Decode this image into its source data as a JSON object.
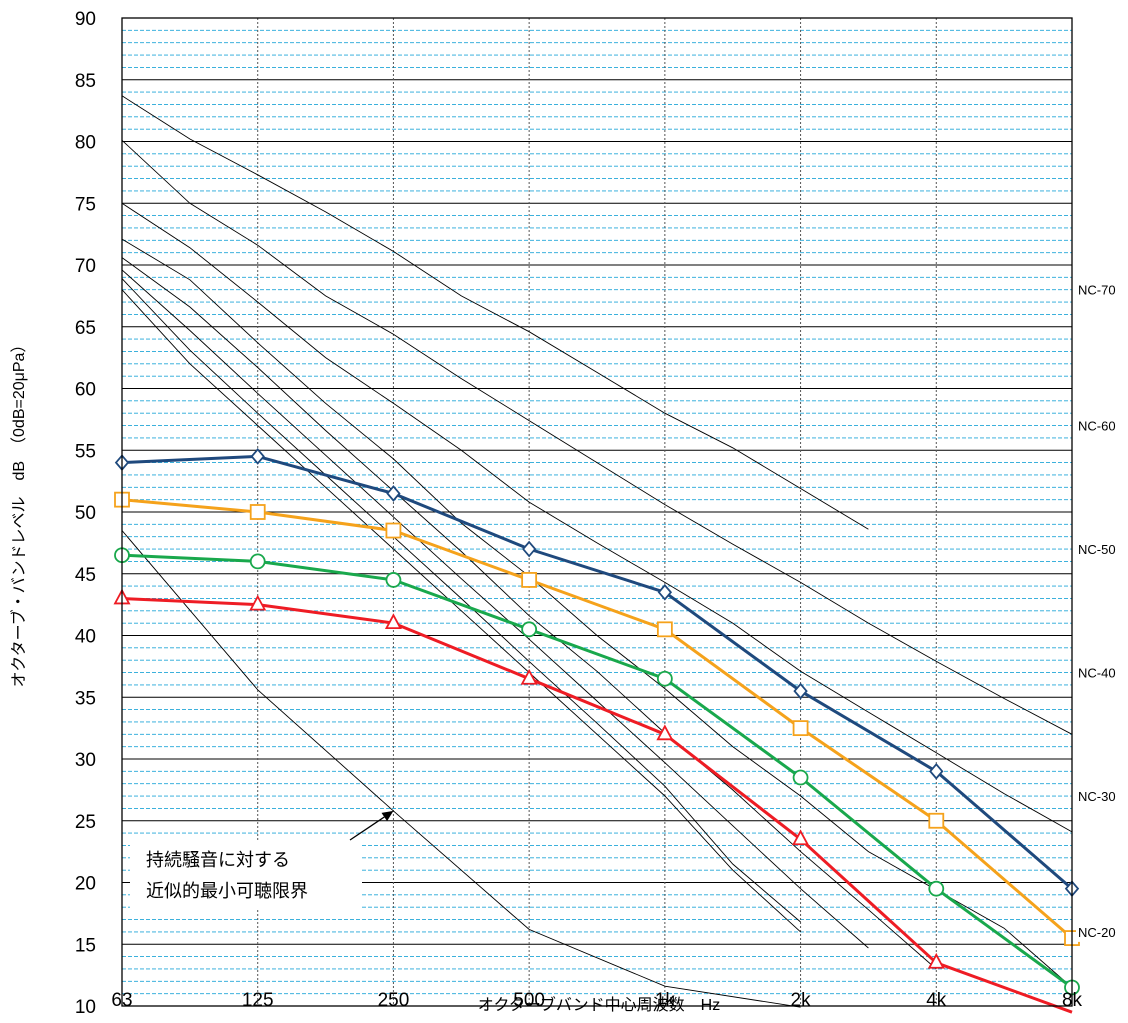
{
  "chart_data": {
    "type": "line",
    "xlabel": "オクターブバンド中心周波数　Hz",
    "ylabel": "オクターブ・バンドレベル　dB　（0dB=20μPa）",
    "x_categories": [
      "63",
      "125",
      "250",
      "500",
      "1k",
      "2k",
      "4k",
      "8k"
    ],
    "ylim": [
      10,
      90
    ],
    "y_major_step": 5,
    "y_minor_step": 1,
    "yticks": [
      "10",
      "15",
      "20",
      "25",
      "30",
      "35",
      "40",
      "45",
      "50",
      "55",
      "60",
      "65",
      "70",
      "75",
      "80",
      "85",
      "90"
    ],
    "grid": true,
    "nc_curves": [
      {
        "values": [
          83.7,
          80.2,
          77.3,
          74.3,
          71.1,
          67.5,
          64.6,
          61.3,
          58.0,
          55.2,
          51.9,
          48.6
        ]
      },
      {
        "values": [
          80.1,
          75.0,
          71.6,
          67.5,
          64.4,
          60.8,
          57.4,
          54.0,
          50.6,
          47.4,
          44.3,
          41.0,
          37.9,
          34.9,
          32.0
        ]
      },
      {
        "values": [
          75.0,
          71.4,
          67.0,
          62.5,
          58.8,
          55.0,
          50.8,
          47.5,
          44.3,
          41.0,
          37.1,
          33.8,
          30.5,
          27.2,
          24.1
        ]
      },
      {
        "values": [
          72.1,
          68.8,
          63.7,
          58.8,
          54.3,
          49.1,
          44.8,
          40.0,
          35.7,
          31.0,
          27.0,
          22.5,
          19.4,
          16.3,
          11.5
        ]
      },
      {
        "values": [
          70.6,
          66.6,
          61.7,
          56.6,
          51.7,
          46.8,
          41.6,
          37.1,
          32.1,
          27.5,
          22.5,
          17.8,
          13.0
        ]
      },
      {
        "values": [
          69.6,
          64.7,
          59.6,
          54.6,
          49.6,
          44.6,
          39.7,
          34.7,
          29.7,
          24.6,
          19.5,
          14.7,
          9.9
        ]
      },
      {
        "values": [
          68.9,
          63.1,
          58.0,
          53.0,
          48.0,
          43.0,
          37.9,
          32.9,
          27.8,
          21.5,
          16.8
        ]
      },
      {
        "values": [
          68.0,
          62.0,
          57.0,
          52.0,
          47.0,
          42.0,
          37.0,
          32.0,
          27.0,
          21.0,
          16.0
        ]
      }
    ],
    "nc_labels": [
      {
        "text": "NC-70",
        "value": 68
      },
      {
        "text": "NC-60",
        "value": 57
      },
      {
        "text": "NC-50",
        "value": 47
      },
      {
        "text": "NC-40",
        "value": 37
      },
      {
        "text": "NC-30",
        "value": 27
      },
      {
        "text": "NC-20",
        "value": 16
      }
    ],
    "threshold_curve": {
      "values": [
        48.5,
        35.6,
        25.8,
        16.2,
        11.6,
        9.9
      ]
    },
    "series": [
      {
        "marker": "diamond",
        "color": "#1f497d",
        "values": [
          54,
          54.5,
          51.5,
          47,
          43.5,
          35.5,
          29,
          19.5
        ]
      },
      {
        "marker": "square",
        "color": "#f5a21b",
        "values": [
          51,
          50,
          48.5,
          44.5,
          40.5,
          32.5,
          25,
          15.5
        ]
      },
      {
        "marker": "circle",
        "color": "#19a84c",
        "values": [
          46.5,
          46,
          44.5,
          40.5,
          36.5,
          28.5,
          19.5,
          11.5
        ]
      },
      {
        "marker": "triangle",
        "color": "#ee1c24",
        "values": [
          43,
          42.5,
          41,
          36.5,
          32,
          23.5,
          13.5,
          9.5
        ]
      }
    ],
    "annotation": {
      "lines": [
        "持続騒音に対する",
        "近似的最小可聴限界"
      ],
      "arrow_to": {
        "x": "250",
        "y": 25.8
      }
    },
    "colors": {
      "minor_grid": "#21a6d8",
      "major_grid": "#000000",
      "vertical_grid": "#555555"
    }
  }
}
